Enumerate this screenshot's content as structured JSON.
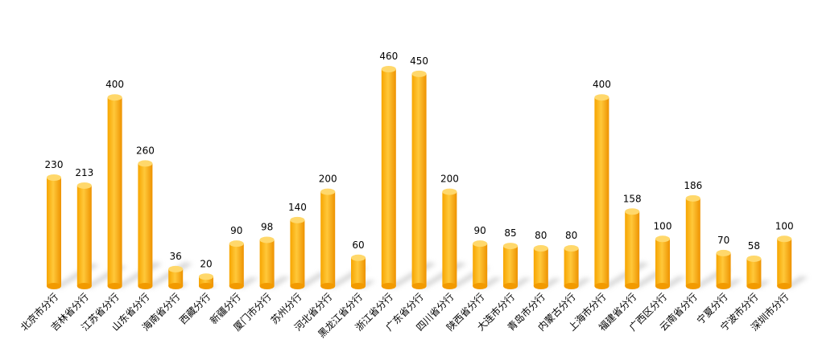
{
  "chart_data": {
    "type": "bar",
    "style": "3d-cylinder",
    "categories": [
      "北京市分行",
      "吉林省分行",
      "江苏省分行",
      "山东省分行",
      "海南省分行",
      "西藏分行",
      "新疆分行",
      "厦门市分行",
      "苏州分行",
      "河北省分行",
      "黑龙江省分行",
      "浙江省分行",
      "广东省分行",
      "四川省分行",
      "陕西省分行",
      "大连市分行",
      "青岛市分行",
      "内蒙古分行",
      "上海市分行",
      "福建省分行",
      "广西区分行",
      "云南省分行",
      "宁夏分行",
      "宁波市分行",
      "深圳市分行"
    ],
    "values": [
      230,
      213,
      400,
      260,
      36,
      20,
      90,
      98,
      140,
      200,
      60,
      460,
      450,
      200,
      90,
      85,
      80,
      80,
      400,
      158,
      100,
      186,
      70,
      58,
      100
    ],
    "data_labels": [
      "230",
      "213",
      "400",
      "260",
      "36",
      "20",
      "90",
      "98",
      "140",
      "200",
      "60",
      "460",
      "450",
      "200",
      "90",
      "85",
      "80",
      "80",
      "400",
      "158",
      "100",
      "186",
      "70",
      "58",
      "100"
    ],
    "ylim": [
      0,
      480
    ],
    "grid": false,
    "legend": "none",
    "colors": {
      "bar_light": "#FFC83A",
      "bar_dark": "#F29A00",
      "bar_top": "#FFD86B",
      "shadow": "#d0d0d0"
    }
  }
}
